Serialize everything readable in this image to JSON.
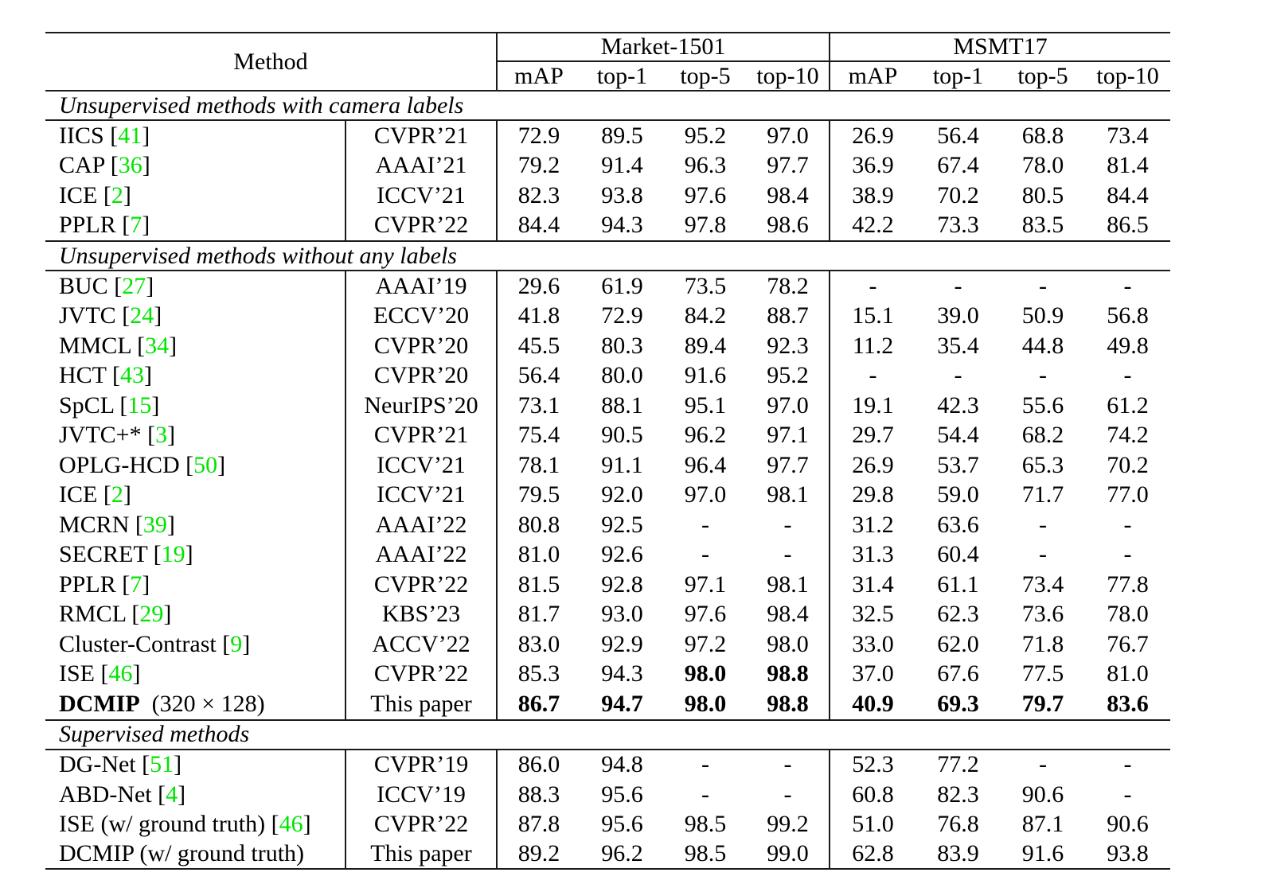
{
  "colors": {
    "citation": "#00e400",
    "rule": "#1a1a1a",
    "text": "#000000",
    "background": "#ffffff"
  },
  "table": {
    "header": {
      "method_label": "Method",
      "groups": [
        {
          "label": "Market-1501",
          "columns": [
            "mAP",
            "top-1",
            "top-5",
            "top-10"
          ]
        },
        {
          "label": "MSMT17",
          "columns": [
            "mAP",
            "top-1",
            "top-5",
            "top-10"
          ]
        }
      ]
    },
    "sections": [
      {
        "title": "Unsupervised methods with camera labels",
        "rows": [
          {
            "method": "IICS",
            "citation": "41",
            "venue": "CVPR’21",
            "values": [
              "72.9",
              "89.5",
              "95.2",
              "97.0",
              "26.9",
              "56.4",
              "68.8",
              "73.4"
            ]
          },
          {
            "method": "CAP",
            "citation": "36",
            "venue": "AAAI’21",
            "values": [
              "79.2",
              "91.4",
              "96.3",
              "97.7",
              "36.9",
              "67.4",
              "78.0",
              "81.4"
            ]
          },
          {
            "method": "ICE",
            "citation": "2",
            "venue": "ICCV’21",
            "values": [
              "82.3",
              "93.8",
              "97.6",
              "98.4",
              "38.9",
              "70.2",
              "80.5",
              "84.4"
            ]
          },
          {
            "method": "PPLR",
            "citation": "7",
            "venue": "CVPR’22",
            "values": [
              "84.4",
              "94.3",
              "97.8",
              "98.6",
              "42.2",
              "73.3",
              "83.5",
              "86.5"
            ]
          }
        ]
      },
      {
        "title": "Unsupervised methods without any labels",
        "rows": [
          {
            "method": "BUC",
            "citation": "27",
            "venue": "AAAI’19",
            "values": [
              "29.6",
              "61.9",
              "73.5",
              "78.2",
              "-",
              "-",
              "-",
              "-"
            ]
          },
          {
            "method": "JVTC",
            "citation": "24",
            "venue": "ECCV’20",
            "values": [
              "41.8",
              "72.9",
              "84.2",
              "88.7",
              "15.1",
              "39.0",
              "50.9",
              "56.8"
            ]
          },
          {
            "method": "MMCL",
            "citation": "34",
            "venue": "CVPR’20",
            "values": [
              "45.5",
              "80.3",
              "89.4",
              "92.3",
              "11.2",
              "35.4",
              "44.8",
              "49.8"
            ]
          },
          {
            "method": "HCT",
            "citation": "43",
            "venue": "CVPR’20",
            "values": [
              "56.4",
              "80.0",
              "91.6",
              "95.2",
              "-",
              "-",
              "-",
              "-"
            ]
          },
          {
            "method": "SpCL",
            "citation": "15",
            "venue": "NeurIPS’20",
            "values": [
              "73.1",
              "88.1",
              "95.1",
              "97.0",
              "19.1",
              "42.3",
              "55.6",
              "61.2"
            ]
          },
          {
            "method": "JVTC+*",
            "citation": "3",
            "venue": "CVPR’21",
            "values": [
              "75.4",
              "90.5",
              "96.2",
              "97.1",
              "29.7",
              "54.4",
              "68.2",
              "74.2"
            ]
          },
          {
            "method": "OPLG-HCD",
            "citation": "50",
            "venue": "ICCV’21",
            "values": [
              "78.1",
              "91.1",
              "96.4",
              "97.7",
              "26.9",
              "53.7",
              "65.3",
              "70.2"
            ]
          },
          {
            "method": "ICE",
            "citation": "2",
            "venue": "ICCV’21",
            "values": [
              "79.5",
              "92.0",
              "97.0",
              "98.1",
              "29.8",
              "59.0",
              "71.7",
              "77.0"
            ]
          },
          {
            "method": "MCRN",
            "citation": "39",
            "venue": "AAAI’22",
            "values": [
              "80.8",
              "92.5",
              "-",
              "-",
              "31.2",
              "63.6",
              "-",
              "-"
            ]
          },
          {
            "method": "SECRET",
            "citation": "19",
            "venue": "AAAI’22",
            "values": [
              "81.0",
              "92.6",
              "-",
              "-",
              "31.3",
              "60.4",
              "-",
              "-"
            ]
          },
          {
            "method": "PPLR",
            "citation": "7",
            "venue": "CVPR’22",
            "values": [
              "81.5",
              "92.8",
              "97.1",
              "98.1",
              "31.4",
              "61.1",
              "73.4",
              "77.8"
            ]
          },
          {
            "method": "RMCL",
            "citation": "29",
            "venue": "KBS’23",
            "values": [
              "81.7",
              "93.0",
              "97.6",
              "98.4",
              "32.5",
              "62.3",
              "73.6",
              "78.0"
            ]
          },
          {
            "method": "Cluster-Contrast",
            "citation": "9",
            "venue": "ACCV’22",
            "values": [
              "83.0",
              "92.9",
              "97.2",
              "98.0",
              "33.0",
              "62.0",
              "71.8",
              "76.7"
            ]
          },
          {
            "method": "ISE",
            "citation": "46",
            "venue": "CVPR’22",
            "values": [
              "85.3",
              "94.3",
              "98.0",
              "98.8",
              "37.0",
              "67.6",
              "77.5",
              "81.0"
            ],
            "bold": [
              0,
              0,
              1,
              1,
              0,
              0,
              0,
              0
            ]
          },
          {
            "method": "DCMIP",
            "method_bold": true,
            "suffix": "(320 × 128)",
            "venue": "This paper",
            "values": [
              "86.7",
              "94.7",
              "98.0",
              "98.8",
              "40.9",
              "69.3",
              "79.7",
              "83.6"
            ],
            "bold": [
              1,
              1,
              1,
              1,
              1,
              1,
              1,
              1
            ]
          }
        ]
      },
      {
        "title": "Supervised methods",
        "rows": [
          {
            "method": "DG-Net",
            "citation": "51",
            "venue": "CVPR’19",
            "values": [
              "86.0",
              "94.8",
              "-",
              "-",
              "52.3",
              "77.2",
              "-",
              "-"
            ]
          },
          {
            "method": "ABD-Net",
            "citation": "4",
            "venue": "ICCV’19",
            "values": [
              "88.3",
              "95.6",
              "-",
              "-",
              "60.8",
              "82.3",
              "90.6",
              "-"
            ]
          },
          {
            "method": "ISE (w/ ground truth)",
            "citation": "46",
            "venue": "CVPR’22",
            "values": [
              "87.8",
              "95.6",
              "98.5",
              "99.2",
              "51.0",
              "76.8",
              "87.1",
              "90.6"
            ]
          },
          {
            "method": "DCMIP (w/ ground truth)",
            "venue": "This paper",
            "values": [
              "89.2",
              "96.2",
              "98.5",
              "99.0",
              "62.8",
              "83.9",
              "91.6",
              "93.8"
            ]
          }
        ]
      }
    ]
  }
}
